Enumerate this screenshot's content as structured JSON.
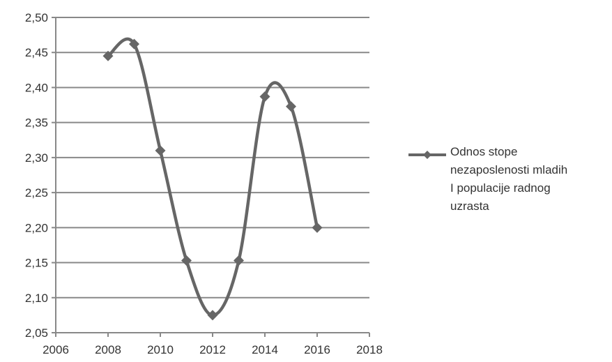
{
  "chart_data": {
    "type": "line",
    "title": "",
    "xlabel": "",
    "ylabel": "",
    "xlim": [
      2006,
      2018
    ],
    "ylim": [
      2.05,
      2.5
    ],
    "x_ticks": [
      "2006",
      "2008",
      "2010",
      "2012",
      "2014",
      "2016",
      "2018"
    ],
    "y_ticks": [
      "2,05",
      "2,10",
      "2,15",
      "2,20",
      "2,25",
      "2,30",
      "2,35",
      "2,40",
      "2,45",
      "2,50"
    ],
    "grid": "horizontal",
    "smooth": true,
    "legend_position": "right",
    "series": [
      {
        "name_lines": [
          "Odnos stope",
          "nezaposlenosti mladih",
          "I populacije radnog",
          "uzrasta"
        ],
        "color": "#666666",
        "marker": "diamond",
        "x": [
          2008,
          2009,
          2010,
          2011,
          2012,
          2013,
          2014,
          2015,
          2016
        ],
        "values": [
          2.445,
          2.462,
          2.31,
          2.153,
          2.075,
          2.153,
          2.387,
          2.373,
          2.2
        ]
      }
    ]
  }
}
